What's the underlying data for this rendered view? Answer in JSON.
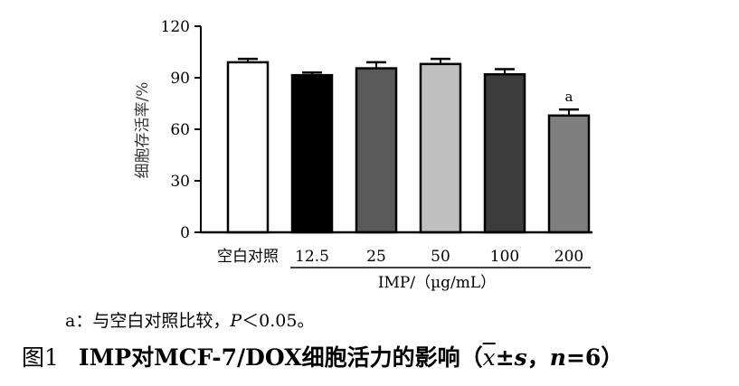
{
  "chart_data": {
    "type": "bar",
    "ylabel": "细胞存活率/%",
    "xlabel": "IMP/（µg/mL）",
    "ylim": [
      0,
      120
    ],
    "yticks": [
      0,
      30,
      60,
      90,
      120
    ],
    "categories": [
      "空白对照",
      "12.5",
      "25",
      "50",
      "100",
      "200"
    ],
    "values": [
      99,
      91.5,
      95.5,
      98,
      92,
      68
    ],
    "errors": [
      2,
      1.5,
      3.5,
      3,
      3,
      3.5
    ],
    "colors": [
      "#ffffff",
      "#000000",
      "#5a5a5a",
      "#c0c0c0",
      "#3c3c3c",
      "#7f7f7f"
    ],
    "annotations": [
      {
        "category": "200",
        "text": "a"
      }
    ],
    "grid": false
  },
  "note": {
    "prefix": "a：与空白对照比较，",
    "p": "P",
    "suffix": "＜0.05。"
  },
  "caption": {
    "label": "图1",
    "text": "IMP对MCF-7/DOX细胞活力的影响（",
    "xbar": "x",
    "pm": "±",
    "s": "s",
    "comma": "，",
    "n": "n",
    "eq": "=6）"
  }
}
